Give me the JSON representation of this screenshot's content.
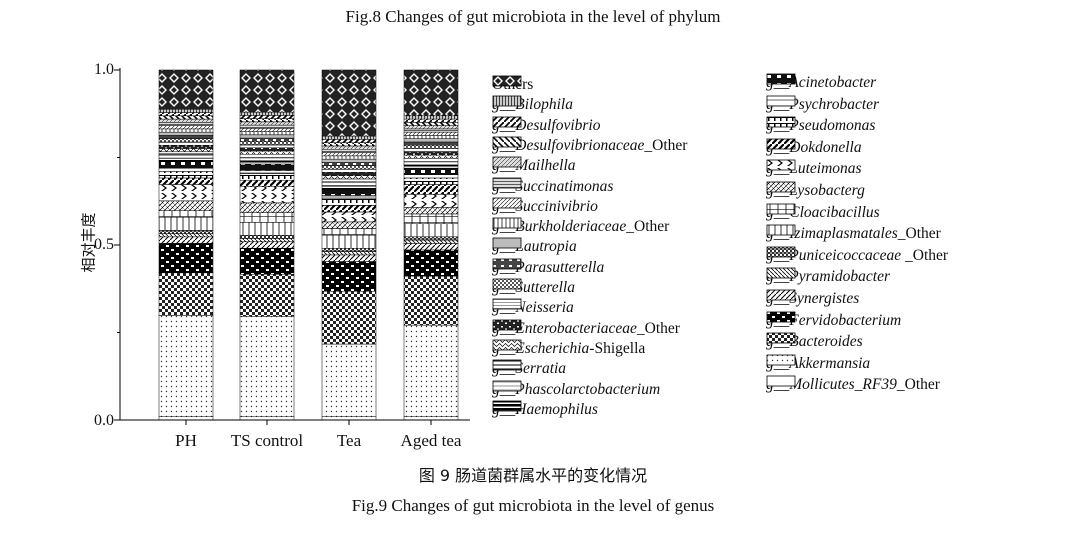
{
  "captions": {
    "top": "Fig.8 Changes of gut microbiota in the level of phylum",
    "cn": "图 9 肠道菌群属水平的变化情况",
    "en": "Fig.9 Changes of gut microbiota in the level of genus"
  },
  "chart_data": {
    "type": "bar",
    "stacked": true,
    "ylabel": "相对丰度",
    "xlabel": "",
    "ylim": [
      0,
      1.0
    ],
    "yticks": [
      "0.0",
      "0.5",
      "1.0"
    ],
    "categories": [
      "PH",
      "TS control",
      "Tea",
      "Aged tea"
    ],
    "series": [
      {
        "name": "g__Mollicutes_RF39_Other",
        "pattern": "white",
        "values": [
          0.01,
          0.01,
          0.01,
          0.01
        ]
      },
      {
        "name": "g__Akkermansia",
        "pattern": "dots",
        "values": [
          0.31,
          0.31,
          0.22,
          0.28
        ]
      },
      {
        "name": "g__Bacteroides",
        "pattern": "check",
        "values": [
          0.13,
          0.13,
          0.16,
          0.15
        ]
      },
      {
        "name": "g__Fervidobacterium",
        "pattern": "brick",
        "values": [
          0.09,
          0.08,
          0.09,
          0.08
        ]
      },
      {
        "name": "g__Synergistes",
        "pattern": "diag",
        "values": [
          0.02,
          0.02,
          0.02,
          0.02
        ]
      },
      {
        "name": "g__Pyramidobacter",
        "pattern": "diag2",
        "values": [
          0.01,
          0.01,
          0.01,
          0.01
        ]
      },
      {
        "name": "g__Puniceicoccaceae _Other",
        "pattern": "grid",
        "values": [
          0.01,
          0.01,
          0.01,
          0.01
        ]
      },
      {
        "name": "g__Izimaplasmatales_Other",
        "pattern": "vlines",
        "values": [
          0.04,
          0.04,
          0.04,
          0.04
        ]
      },
      {
        "name": "g__Cloacibacillus",
        "pattern": "vlines2",
        "values": [
          0.02,
          0.03,
          0.02,
          0.03
        ]
      },
      {
        "name": "g__Lysobacterg",
        "pattern": "diag3",
        "values": [
          0.03,
          0.03,
          0.02,
          0.02
        ]
      },
      {
        "name": "g__Luteimonas",
        "pattern": "chev",
        "values": [
          0.05,
          0.05,
          0.03,
          0.04
        ]
      },
      {
        "name": "g__Dokdonella",
        "pattern": "diag4",
        "values": [
          0.02,
          0.02,
          0.02,
          0.03
        ]
      },
      {
        "name": "g__Pseudomonas",
        "pattern": "hbars",
        "values": [
          0.02,
          0.02,
          0.02,
          0.02
        ]
      },
      {
        "name": "g__Psychrobacter",
        "pattern": "white2",
        "values": [
          0.01,
          0.01,
          0.01,
          0.01
        ]
      },
      {
        "name": "g__Acinetobacter",
        "pattern": "brick2",
        "values": [
          0.02,
          0.02,
          0.02,
          0.02
        ]
      },
      {
        "name": "g__Haemophilus",
        "pattern": "hbold",
        "values": [
          0.01,
          0.01,
          0.01,
          0.01
        ]
      },
      {
        "name": "g__Phascolarctobacterium",
        "pattern": "hlight",
        "values": [
          0.01,
          0.01,
          0.01,
          0.01
        ]
      },
      {
        "name": "g__Serratia",
        "pattern": "hlines",
        "values": [
          0.01,
          0.01,
          0.01,
          0.01
        ]
      },
      {
        "name": "g__Escherichia-Shigella",
        "pattern": "wave",
        "values": [
          0.01,
          0.01,
          0.01,
          0.01
        ]
      },
      {
        "name": "g__Enterobacteriaceae_Other",
        "pattern": "brick3",
        "values": [
          0.01,
          0.01,
          0.01,
          0.01
        ]
      },
      {
        "name": "g__Neisseria",
        "pattern": "hlines2",
        "values": [
          0.01,
          0.01,
          0.01,
          0.01
        ]
      },
      {
        "name": "g__Sutterella",
        "pattern": "check2",
        "values": [
          0.01,
          0.01,
          0.01,
          0.01
        ]
      },
      {
        "name": "g__Parasutterella",
        "pattern": "brick4",
        "values": [
          0.01,
          0.01,
          0.01,
          0.01
        ]
      },
      {
        "name": "g__Lautropia",
        "pattern": "gray",
        "values": [
          0.01,
          0.01,
          0.01,
          0.01
        ]
      },
      {
        "name": "g__Burkholderiaceae_Other",
        "pattern": "vlines3",
        "values": [
          0.01,
          0.01,
          0.01,
          0.01
        ]
      },
      {
        "name": "g__Succinivibrio",
        "pattern": "diag5",
        "values": [
          0.01,
          0.01,
          0.01,
          0.01
        ]
      },
      {
        "name": "g__Succinatimonas",
        "pattern": "hlines3",
        "values": [
          0.01,
          0.01,
          0.01,
          0.01
        ]
      },
      {
        "name": "g__Mailhella",
        "pattern": "diag6",
        "values": [
          0.01,
          0.01,
          0.01,
          0.01
        ]
      },
      {
        "name": "g__Desulfovibrionaceae_Other",
        "pattern": "diag7",
        "values": [
          0.01,
          0.01,
          0.01,
          0.01
        ]
      },
      {
        "name": "g__Desulfovibrio",
        "pattern": "diag8",
        "values": [
          0.01,
          0.01,
          0.01,
          0.01
        ]
      },
      {
        "name": "g__Bilophila",
        "pattern": "vlines4",
        "values": [
          0.01,
          0.01,
          0.01,
          0.01
        ]
      },
      {
        "name": "Others",
        "pattern": "cross",
        "values": [
          0.12,
          0.13,
          0.2,
          0.14
        ]
      }
    ]
  },
  "legend_col1": [
    {
      "prefix": "",
      "name": "Others",
      "pattern": "cross"
    },
    {
      "prefix": "g__",
      "name": "Bilophila",
      "pattern": "vlines4"
    },
    {
      "prefix": "g__",
      "name": "Desulfovibrio",
      "pattern": "diag8"
    },
    {
      "prefix": "g__",
      "name": "Desulfovibrionaceae",
      "suffix": "_Other",
      "pattern": "diag7"
    },
    {
      "prefix": "g__",
      "name": "Mailhella",
      "pattern": "diag6"
    },
    {
      "prefix": "g__",
      "name": "Succinatimonas",
      "pattern": "hlines3"
    },
    {
      "prefix": "g__",
      "name": "Succinivibrio",
      "pattern": "diag5"
    },
    {
      "prefix": "g__",
      "name": "Burkholderiaceae",
      "suffix": "_Other",
      "pattern": "vlines3"
    },
    {
      "prefix": "g__",
      "name": "Lautropia",
      "pattern": "gray"
    },
    {
      "prefix": "g__",
      "name": "Parasutterella",
      "pattern": "brick4"
    },
    {
      "prefix": "g__",
      "name": "Sutterella",
      "pattern": "check2"
    },
    {
      "prefix": "g__",
      "name": "Neisseria",
      "pattern": "hlines2"
    },
    {
      "prefix": "g__",
      "name": "Enterobacteriaceae",
      "suffix": "_Other",
      "pattern": "brick3"
    },
    {
      "prefix": "g__",
      "name": "Escherichia",
      "suffix": "-Shigella",
      "pattern": "wave"
    },
    {
      "prefix": "g__",
      "name": "Serratia",
      "pattern": "hlines"
    },
    {
      "prefix": "g__",
      "name": "Phascolarctobacterium",
      "pattern": "hlight"
    },
    {
      "prefix": "g__",
      "name": "Haemophilus",
      "pattern": "hbold"
    }
  ],
  "legend_col2": [
    {
      "prefix": "g__",
      "name": "Acinetobacter",
      "pattern": "brick2"
    },
    {
      "prefix": "g__",
      "name": "Psychrobacter",
      "pattern": "white2"
    },
    {
      "prefix": "g__",
      "name": "Pseudomonas",
      "pattern": "hbars"
    },
    {
      "prefix": "g__",
      "name": "Dokdonella",
      "pattern": "diag4"
    },
    {
      "prefix": "g__",
      "name": "Luteimonas",
      "pattern": "chev"
    },
    {
      "prefix": "g__",
      "name": "Lysobacterg",
      "pattern": "diag3"
    },
    {
      "prefix": "g__",
      "name": "Cloacibacillus",
      "pattern": "vlines2"
    },
    {
      "prefix": "g__",
      "name": "Izimaplasmatales",
      "suffix": "_Other",
      "pattern": "vlines"
    },
    {
      "prefix": "g__",
      "name": "Puniceicoccaceae",
      "suffix": " _Other",
      "pattern": "grid"
    },
    {
      "prefix": "g__",
      "name": "Pyramidobacter",
      "pattern": "diag2"
    },
    {
      "prefix": "g__",
      "name": "Synergistes",
      "pattern": "diag"
    },
    {
      "prefix": "g__",
      "name": "Fervidobacterium",
      "pattern": "brick"
    },
    {
      "prefix": "g__",
      "name": "Bacteroides",
      "pattern": "check"
    },
    {
      "prefix": "g__",
      "name": "Akkermansia",
      "pattern": "dots"
    },
    {
      "prefix": "g__",
      "name": "Mollicutes_RF39",
      "suffix": "_Other",
      "pattern": "white"
    }
  ]
}
